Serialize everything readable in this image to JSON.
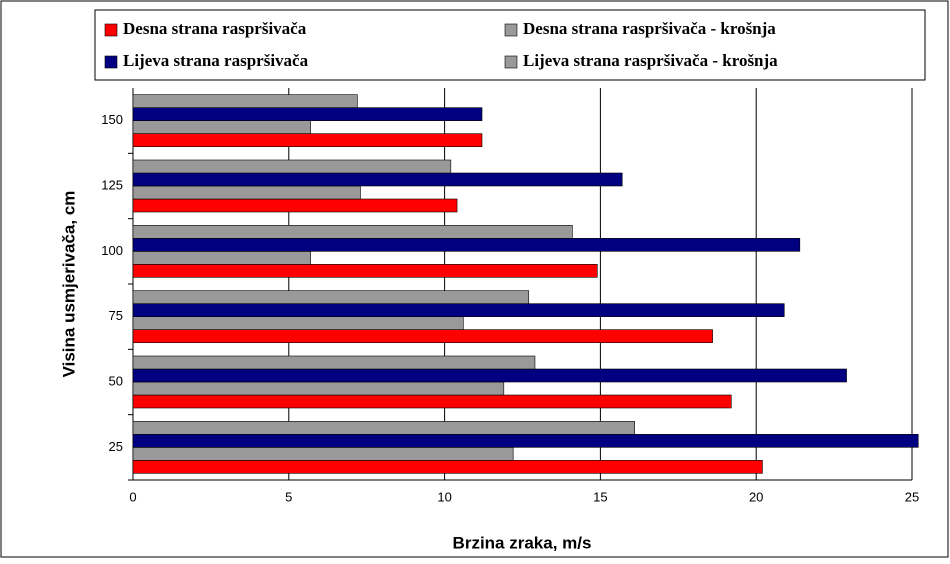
{
  "chart_data": {
    "type": "barh",
    "x_label": "Brzina zraka, m/s",
    "y_label": "Visina usmjerivača, cm",
    "categories": [
      "25",
      "50",
      "75",
      "100",
      "125",
      "150"
    ],
    "series": [
      {
        "name": "Desna strana raspršivača",
        "color": "#ff0000",
        "values": [
          20.2,
          19.2,
          18.6,
          14.9,
          10.4,
          11.2
        ]
      },
      {
        "name": "Desna strana raspršivača - krošnja",
        "color": "#999999",
        "values": [
          12.2,
          11.9,
          10.6,
          5.7,
          7.3,
          5.7
        ]
      },
      {
        "name": "Lijeva strana raspršivača",
        "color": "#000080",
        "values": [
          25.2,
          22.9,
          20.9,
          21.4,
          15.7,
          11.2
        ]
      },
      {
        "name": "Lijeva strana raspršivača - krošnja",
        "color": "#999999",
        "values": [
          16.1,
          12.9,
          12.7,
          14.1,
          10.2,
          7.2
        ]
      }
    ],
    "xlim": [
      0,
      25
    ],
    "xticks": [
      0,
      5,
      10,
      15,
      20,
      25
    ],
    "grid": true
  }
}
